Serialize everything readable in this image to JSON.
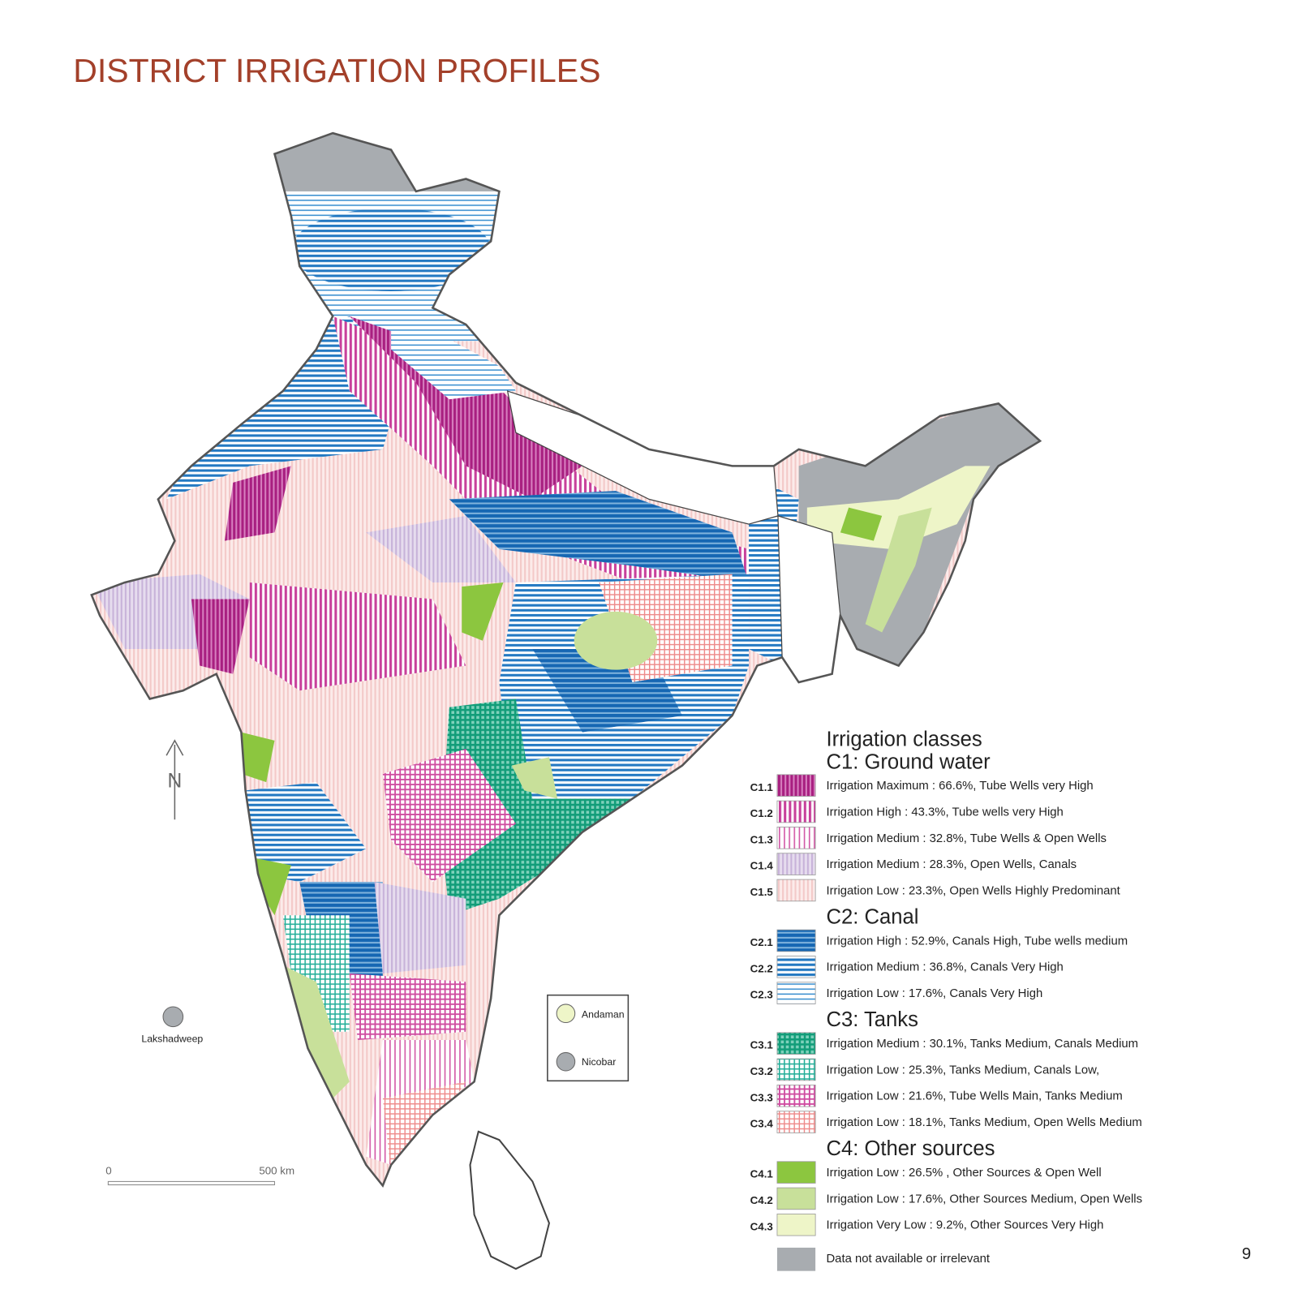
{
  "header": {
    "title": "DISTRICT IRRIGATION PROFILES"
  },
  "map": {
    "compass": "N",
    "scale_bar": {
      "start": "0",
      "end": "500 km"
    },
    "islands": {
      "lakshadweep": "Lakshadweep",
      "andaman": "Andaman",
      "nicobar": "Nicobar"
    }
  },
  "legend": {
    "title": "Irrigation classes",
    "groups": [
      {
        "name": "C1: Ground water",
        "items": [
          {
            "code": "C1.1",
            "label": "Irrigation Maximum : 66.6%, Tube Wells very High"
          },
          {
            "code": "C1.2",
            "label": "Irrigation High : 43.3%,  Tube wells very High"
          },
          {
            "code": "C1.3",
            "label": "Irrigation Medium : 32.8%, Tube Wells & Open Wells"
          },
          {
            "code": "C1.4",
            "label": "Irrigation Medium : 28.3%, Open Wells, Canals"
          },
          {
            "code": "C1.5",
            "label": "Irrigation Low : 23.3%, Open Wells Highly Predominant"
          }
        ]
      },
      {
        "name": "C2: Canal",
        "items": [
          {
            "code": "C2.1",
            "label": "Irrigation High : 52.9%, Canals High, Tube wells medium"
          },
          {
            "code": "C2.2",
            "label": "Irrigation Medium : 36.8%, Canals Very High"
          },
          {
            "code": "C2.3",
            "label": "Irrigation Low : 17.6%, Canals Very High"
          }
        ]
      },
      {
        "name": "C3: Tanks",
        "items": [
          {
            "code": "C3.1",
            "label": "Irrigation Medium : 30.1%, Tanks Medium, Canals Medium"
          },
          {
            "code": "C3.2",
            "label": "Irrigation Low : 25.3%, Tanks Medium, Canals Low,"
          },
          {
            "code": "C3.3",
            "label": "Irrigation Low : 21.6%, Tube Wells Main, Tanks Medium"
          },
          {
            "code": "C3.4",
            "label": "Irrigation Low : 18.1%, Tanks Medium, Open Wells Medium"
          }
        ]
      },
      {
        "name": "C4: Other sources",
        "items": [
          {
            "code": "C4.1",
            "label": "Irrigation Low : 26.5% , Other Sources  & Open Well"
          },
          {
            "code": "C4.2",
            "label": "Irrigation Low : 17.6%, Other Sources Medium, Open Wells"
          },
          {
            "code": "C4.3",
            "label": "Irrigation Very Low : 9.2%, Other Sources Very High"
          }
        ]
      }
    ],
    "no_data": "Data not available or irrelevant"
  },
  "page_number": "9"
}
